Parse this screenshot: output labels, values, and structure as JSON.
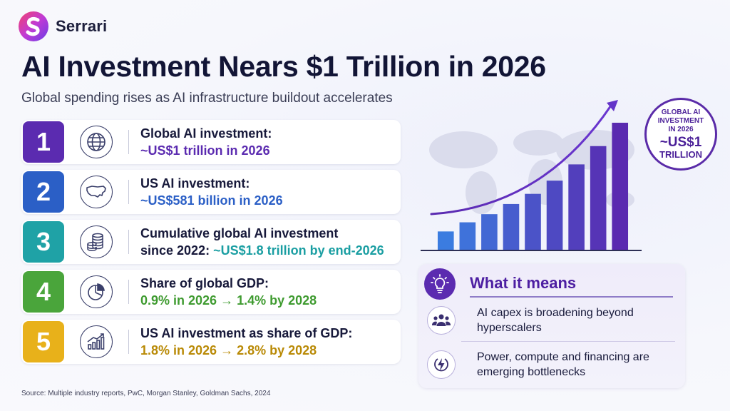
{
  "brand": {
    "name": "Serrari"
  },
  "header": {
    "title": "AI Investment Nears $1 Trillion in 2026",
    "subtitle": "Global spending rises as AI infrastructure buildout accelerates"
  },
  "items": [
    {
      "number": "1",
      "icon": "globe-icon",
      "color": "#5b2bb0",
      "value_color": "#5b2bb0",
      "label": "Global AI investment:",
      "value": "~US$1 trillion in 2026"
    },
    {
      "number": "2",
      "icon": "us-map-icon",
      "color": "#2b5fc6",
      "value_color": "#2b5fc6",
      "label": "US AI investment:",
      "value": "~US$581 billion in 2026"
    },
    {
      "number": "3",
      "icon": "coin-stack-icon",
      "color": "#1fa2a6",
      "value_color": "#1a9ea2",
      "label": "Cumulative global AI investment",
      "label2": "since 2022:",
      "value": "~US$1.8 trillion by end-2026"
    },
    {
      "number": "4",
      "icon": "pie-chart-icon",
      "color": "#4aa53b",
      "value_color": "#3f9b30",
      "label": "Share of global GDP:",
      "value": "0.9% in 2026 → 1.4% by 2028"
    },
    {
      "number": "5",
      "icon": "growth-chart-icon",
      "color": "#e8b11a",
      "value_color": "#b98a06",
      "label": "US AI investment as share of GDP:",
      "value": "1.8% in 2026 → 2.8% by 2028"
    }
  ],
  "badge": {
    "line1": "GLOBAL AI INVESTMENT IN 2026",
    "line2": "~US$1",
    "line3": "TRILLION"
  },
  "chart_data": {
    "type": "bar",
    "title": "",
    "categories": [
      "",
      "",
      "",
      "",
      "",
      "",
      "",
      "",
      ""
    ],
    "values": [
      18,
      27,
      35,
      45,
      55,
      68,
      84,
      102,
      125
    ],
    "trend_arrow": true,
    "colors": {
      "start": "#3b7ce0",
      "end": "#5a2ab0"
    }
  },
  "panel": {
    "title": "What it means",
    "items": [
      {
        "icon": "people-icon",
        "text": "AI capex is broadening beyond hyperscalers"
      },
      {
        "icon": "power-bolt-icon",
        "text": "Power, compute and financing are emerging bottlenecks"
      }
    ]
  },
  "source": "Source: Multiple industry reports, PwC, Morgan Stanley,  Goldman Sachs, 2024"
}
